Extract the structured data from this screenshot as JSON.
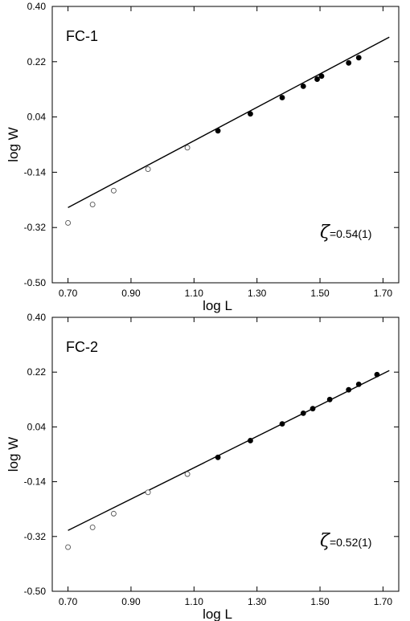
{
  "chart_data": [
    {
      "type": "scatter",
      "panel_label": "FC-1",
      "xlabel": "log L",
      "ylabel": "log W",
      "xlim": [
        0.65,
        1.75
      ],
      "ylim": [
        -0.5,
        0.4
      ],
      "x_ticks": [
        "0.70",
        "0.90",
        "1.10",
        "1.30",
        "1.50",
        "1.70"
      ],
      "y_ticks": [
        "0.40",
        "0.22",
        "0.04",
        "-0.14",
        "-0.32",
        "-0.50"
      ],
      "annotation_symbol": "ζ",
      "annotation_value": "=0.54(1)",
      "grid": false,
      "series": [
        {
          "marker": "open-circle",
          "x": [
            0.7,
            0.778,
            0.845,
            0.954,
            1.079
          ],
          "y": [
            -0.305,
            -0.245,
            -0.2,
            -0.13,
            -0.06
          ]
        },
        {
          "marker": "filled-circle",
          "x": [
            1.176,
            1.279,
            1.38,
            1.447,
            1.491,
            1.505,
            1.591,
            1.623
          ],
          "y": [
            -0.005,
            0.05,
            0.103,
            0.14,
            0.163,
            0.173,
            0.216,
            0.233
          ]
        }
      ],
      "fit_line": {
        "x": [
          0.7,
          1.72
        ],
        "y": [
          -0.255,
          0.3
        ]
      }
    },
    {
      "type": "scatter",
      "panel_label": "FC-2",
      "xlabel": "log L",
      "ylabel": "log W",
      "xlim": [
        0.65,
        1.75
      ],
      "ylim": [
        -0.5,
        0.4
      ],
      "x_ticks": [
        "0.70",
        "0.90",
        "1.10",
        "1.30",
        "1.50",
        "1.70"
      ],
      "y_ticks": [
        "0.40",
        "0.22",
        "0.04",
        "-0.14",
        "-0.32",
        "-0.50"
      ],
      "annotation_symbol": "ζ",
      "annotation_value": "=0.52(1)",
      "grid": false,
      "series": [
        {
          "marker": "open-circle",
          "x": [
            0.7,
            0.778,
            0.845,
            0.954,
            1.079
          ],
          "y": [
            -0.355,
            -0.29,
            -0.245,
            -0.175,
            -0.115
          ]
        },
        {
          "marker": "filled-circle",
          "x": [
            1.176,
            1.279,
            1.38,
            1.447,
            1.477,
            1.531,
            1.591,
            1.623,
            1.681
          ],
          "y": [
            -0.06,
            -0.005,
            0.05,
            0.085,
            0.1,
            0.13,
            0.162,
            0.18,
            0.212
          ]
        }
      ],
      "fit_line": {
        "x": [
          0.7,
          1.72
        ],
        "y": [
          -0.3,
          0.225
        ]
      }
    }
  ]
}
